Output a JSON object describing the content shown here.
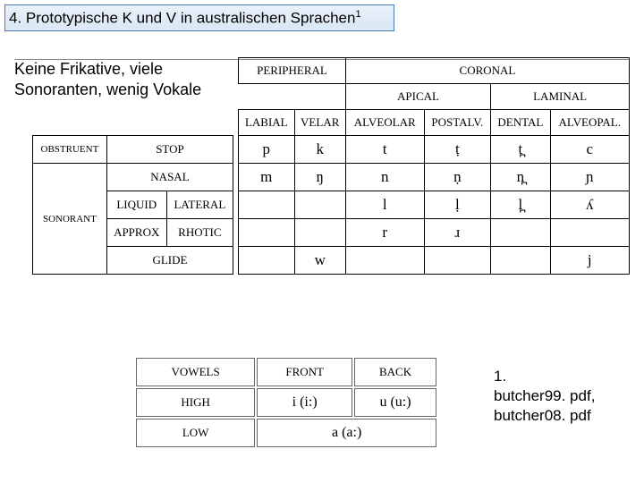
{
  "title_main": "4. Prototypische K und V in australischen Sprachen",
  "title_sup": "1",
  "description": "Keine Frikative, viele Sonoranten, wenig Vokale",
  "cons": {
    "top_groups": [
      "PERIPHERAL",
      "CORONAL"
    ],
    "mid_groups": [
      "APICAL",
      "LAMINAL"
    ],
    "cols": [
      "LABIAL",
      "VELAR",
      "ALVEOLAR",
      "POSTALV.",
      "DENTAL",
      "ALVEOPAL."
    ],
    "row_groups": [
      {
        "name": "OBSTRUENT",
        "rows": [
          {
            "name": "STOP",
            "cells": [
              "p",
              "k",
              "t",
              "ṭ",
              "t̪",
              "c"
            ]
          }
        ]
      },
      {
        "name": "SONORANT",
        "rows": [
          {
            "name": "NASAL",
            "sub": "",
            "cells": [
              "m",
              "ŋ",
              "n",
              "ṇ",
              "n̪",
              "ɲ"
            ]
          },
          {
            "name": "LIQUID",
            "sub": "LATERAL",
            "cells": [
              "",
              "",
              "l",
              "ḷ",
              "l̪",
              "ʎ"
            ]
          },
          {
            "name": "APPROX",
            "sub": "RHOTIC",
            "cells": [
              "",
              "",
              "r",
              "ɹ",
              "",
              ""
            ]
          },
          {
            "name": "GLIDE",
            "sub": "",
            "cells": [
              "",
              "w",
              "",
              "",
              "",
              "j"
            ]
          }
        ]
      }
    ]
  },
  "vow": {
    "cols": [
      "VOWELS",
      "FRONT",
      "BACK"
    ],
    "rows": [
      {
        "name": "HIGH",
        "front": "i   (i:)",
        "back": "u   (u:)"
      },
      {
        "name": "LOW",
        "merged": "a   (a:)"
      }
    ]
  },
  "footnote": {
    "num": "1.",
    "l1": "butcher99. pdf,",
    "l2": "butcher08. pdf"
  }
}
